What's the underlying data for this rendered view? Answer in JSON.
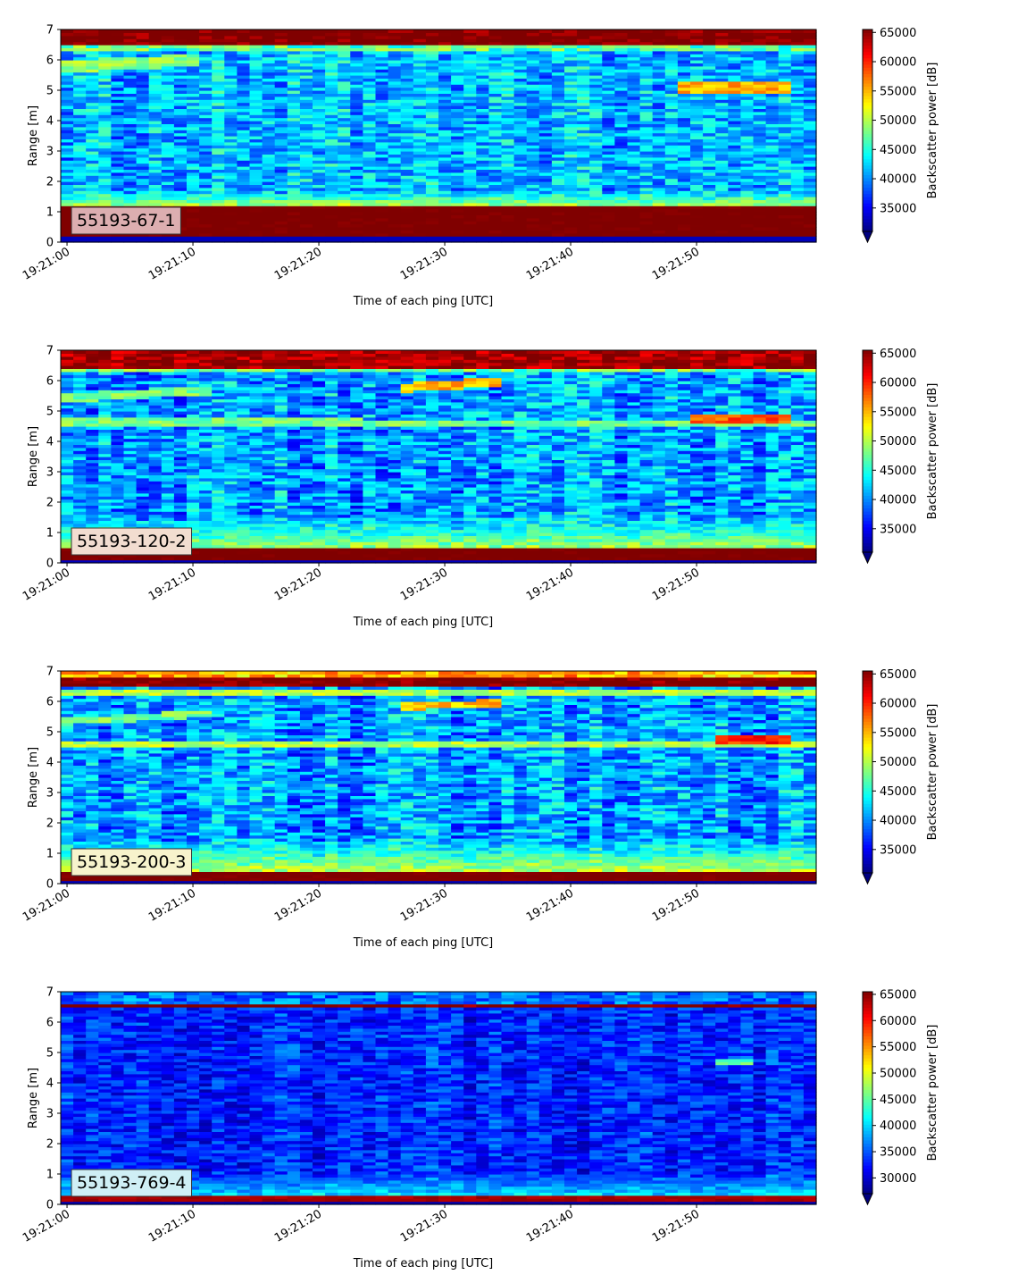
{
  "figure": {
    "chart_data": [
      {
        "type": "heatmap",
        "label": "55193-67-1",
        "label_bg": "#dcaeb0",
        "xlabel": "Time of each ping [UTC]",
        "ylabel": "Range [m]",
        "x_ticks": [
          "19:21:00",
          "19:21:10",
          "19:21:20",
          "19:21:30",
          "19:21:40",
          "19:21:50"
        ],
        "x_tick_seconds": [
          0,
          10,
          20,
          30,
          40,
          50
        ],
        "xlim_seconds": [
          -0.5,
          59.5
        ],
        "y_ticks": [
          "0",
          "1",
          "2",
          "3",
          "4",
          "5",
          "6",
          "7"
        ],
        "ylim": [
          0,
          7
        ],
        "colorbar_label": "Backscatter power [dB]",
        "colorbar_ticks": [
          "35000",
          "40000",
          "45000",
          "50000",
          "55000",
          "60000",
          "65000"
        ],
        "colorbar_tick_values": [
          35000,
          40000,
          45000,
          50000,
          55000,
          60000,
          65000
        ],
        "clim": [
          31000,
          65500
        ],
        "colormap": "jet",
        "colorbar_extend": "min",
        "features": {
          "background_mean": 41500,
          "noise_spread": 4200,
          "near_band": {
            "from": 0.2,
            "to": 1.2,
            "value": 65000
          },
          "near_glow": {
            "from": 1.2,
            "to": 1.7,
            "value": 50000
          },
          "far_band": {
            "from": 6.5,
            "to": 7.0,
            "value": 65000
          },
          "far_glow": {
            "from": 6.3,
            "to": 6.5,
            "value": 47000
          },
          "layers": [
            {
              "from_s": 0,
              "to_s": 10,
              "range_start": 5.8,
              "range_end": 6.0,
              "width": 0.2,
              "value": 49000
            },
            {
              "from_s": 49,
              "to_s": 57,
              "range_start": 5.1,
              "range_end": 5.1,
              "width": 0.2,
              "value": 55000
            }
          ]
        }
      },
      {
        "type": "heatmap",
        "label": "55193-120-2",
        "label_bg": "#f2ddd0",
        "xlabel": "Time of each ping [UTC]",
        "ylabel": "Range [m]",
        "x_ticks": [
          "19:21:00",
          "19:21:10",
          "19:21:20",
          "19:21:30",
          "19:21:40",
          "19:21:50"
        ],
        "x_tick_seconds": [
          0,
          10,
          20,
          30,
          40,
          50
        ],
        "xlim_seconds": [
          -0.5,
          59.5
        ],
        "y_ticks": [
          "0",
          "1",
          "2",
          "3",
          "4",
          "5",
          "6",
          "7"
        ],
        "ylim": [
          0,
          7
        ],
        "colorbar_label": "Backscatter power [dB]",
        "colorbar_ticks": [
          "35000",
          "40000",
          "45000",
          "50000",
          "55000",
          "60000",
          "65000"
        ],
        "colorbar_tick_values": [
          35000,
          40000,
          45000,
          50000,
          55000,
          60000,
          65000
        ],
        "clim": [
          31000,
          65500
        ],
        "colormap": "jet",
        "colorbar_extend": "min",
        "features": {
          "background_mean": 40500,
          "noise_spread": 4500,
          "near_band": {
            "from": 0.1,
            "to": 0.55,
            "value": 65000
          },
          "near_glow": {
            "from": 0.55,
            "to": 1.6,
            "value": 49000
          },
          "far_band": {
            "from": 6.45,
            "to": 7.0,
            "value": 63000
          },
          "far_glow": {
            "from": 6.3,
            "to": 6.45,
            "value": 48000
          },
          "layers": [
            {
              "from_s": 0,
              "to_s": 60,
              "range_start": 4.65,
              "range_end": 4.6,
              "width": 0.12,
              "value": 48000
            },
            {
              "from_s": 0,
              "to_s": 11,
              "range_start": 5.45,
              "range_end": 5.7,
              "width": 0.15,
              "value": 48000
            },
            {
              "from_s": 27,
              "to_s": 34,
              "range_start": 5.8,
              "range_end": 5.95,
              "width": 0.15,
              "value": 55000
            },
            {
              "from_s": 50,
              "to_s": 57,
              "range_start": 4.75,
              "range_end": 4.75,
              "width": 0.15,
              "value": 58000
            }
          ]
        }
      },
      {
        "type": "heatmap",
        "label": "55193-200-3",
        "label_bg": "#f7f3cc",
        "xlabel": "Time of each ping [UTC]",
        "ylabel": "Range [m]",
        "x_ticks": [
          "19:21:00",
          "19:21:10",
          "19:21:20",
          "19:21:30",
          "19:21:40",
          "19:21:50"
        ],
        "x_tick_seconds": [
          0,
          10,
          20,
          30,
          40,
          50
        ],
        "xlim_seconds": [
          -0.5,
          59.5
        ],
        "y_ticks": [
          "0",
          "1",
          "2",
          "3",
          "4",
          "5",
          "6",
          "7"
        ],
        "ylim": [
          0,
          7
        ],
        "colorbar_label": "Backscatter power [dB]",
        "colorbar_ticks": [
          "35000",
          "40000",
          "45000",
          "50000",
          "55000",
          "60000",
          "65000"
        ],
        "colorbar_tick_values": [
          35000,
          40000,
          45000,
          50000,
          55000,
          60000,
          65000
        ],
        "clim": [
          31000,
          65500
        ],
        "colormap": "jet",
        "colorbar_extend": "min",
        "features": {
          "background_mean": 40500,
          "noise_spread": 4500,
          "near_band": {
            "from": 0.1,
            "to": 0.45,
            "value": 65000
          },
          "near_glow": {
            "from": 0.45,
            "to": 1.5,
            "value": 50000
          },
          "far_band": {
            "from": 6.55,
            "to": 6.8,
            "value": 65000
          },
          "far_glow": {
            "from": 6.8,
            "to": 7.0,
            "value": 55000
          },
          "layers": [
            {
              "from_s": 0,
              "to_s": 60,
              "range_start": 4.6,
              "range_end": 4.55,
              "width": 0.1,
              "value": 50000
            },
            {
              "from_s": 0,
              "to_s": 11,
              "range_start": 5.35,
              "range_end": 5.6,
              "width": 0.12,
              "value": 48000
            },
            {
              "from_s": 27,
              "to_s": 34,
              "range_start": 5.85,
              "range_end": 5.95,
              "width": 0.12,
              "value": 55000
            },
            {
              "from_s": 52,
              "to_s": 57,
              "range_start": 4.8,
              "range_end": 4.8,
              "width": 0.15,
              "value": 60000
            },
            {
              "from_s": 0,
              "to_s": 60,
              "range_start": 6.3,
              "range_end": 6.3,
              "width": 0.1,
              "value": 50000
            }
          ]
        }
      },
      {
        "type": "heatmap",
        "label": "55193-769-4",
        "label_bg": "#cfeff5",
        "xlabel": "Time of each ping [UTC]",
        "ylabel": "Range [m]",
        "x_ticks": [
          "19:21:00",
          "19:21:10",
          "19:21:20",
          "19:21:30",
          "19:21:40",
          "19:21:50"
        ],
        "x_tick_seconds": [
          0,
          10,
          20,
          30,
          40,
          50
        ],
        "xlim_seconds": [
          -0.5,
          59.5
        ],
        "y_ticks": [
          "0",
          "1",
          "2",
          "3",
          "4",
          "5",
          "6",
          "7"
        ],
        "ylim": [
          0,
          7
        ],
        "colorbar_label": "Backscatter power [dB]",
        "colorbar_ticks": [
          "30000",
          "35000",
          "40000",
          "45000",
          "50000",
          "55000",
          "60000",
          "65000"
        ],
        "colorbar_tick_values": [
          30000,
          35000,
          40000,
          45000,
          50000,
          55000,
          60000,
          65000
        ],
        "clim": [
          27000,
          65500
        ],
        "colormap": "jet",
        "colorbar_extend": "min",
        "features": {
          "background_mean": 33000,
          "noise_spread": 3500,
          "near_band": {
            "from": 0.15,
            "to": 0.35,
            "value": 63000
          },
          "near_glow": {
            "from": 0.35,
            "to": 1.1,
            "value": 40000
          },
          "far_band": {
            "from": 6.5,
            "to": 6.6,
            "value": 65000
          },
          "far_glow": {
            "from": 6.6,
            "to": 7.0,
            "value": 36000
          },
          "layers": [
            {
              "from_s": 52,
              "to_s": 54,
              "range_start": 4.7,
              "range_end": 4.7,
              "width": 0.1,
              "value": 45000
            }
          ]
        }
      }
    ]
  }
}
